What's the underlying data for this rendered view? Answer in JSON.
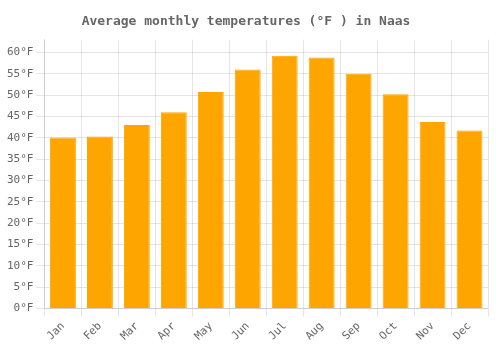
{
  "chart_data": {
    "type": "bar",
    "title": "Average monthly temperatures (°F ) in Naas",
    "categories": [
      "Jan",
      "Feb",
      "Mar",
      "Apr",
      "May",
      "Jun",
      "Jul",
      "Aug",
      "Sep",
      "Oct",
      "Nov",
      "Dec"
    ],
    "values": [
      40.1,
      40.3,
      43.0,
      46.0,
      50.7,
      56.0,
      59.2,
      58.8,
      55.0,
      50.2,
      43.7,
      41.7
    ],
    "color": "#FFA500",
    "ylim": [
      0,
      63
    ],
    "yticks": [
      {
        "value": 0,
        "label": "0°F"
      },
      {
        "value": 5,
        "label": "5°F"
      },
      {
        "value": 10,
        "label": "10°F"
      },
      {
        "value": 15,
        "label": "15°F"
      },
      {
        "value": 20,
        "label": "20°F"
      },
      {
        "value": 25,
        "label": "25°F"
      },
      {
        "value": 30,
        "label": "30°F"
      },
      {
        "value": 35,
        "label": "35°F"
      },
      {
        "value": 40,
        "label": "40°F"
      },
      {
        "value": 45,
        "label": "45°F"
      },
      {
        "value": 50,
        "label": "50°F"
      },
      {
        "value": 55,
        "label": "55°F"
      },
      {
        "value": 60,
        "label": "60°F"
      }
    ],
    "grid": true
  }
}
